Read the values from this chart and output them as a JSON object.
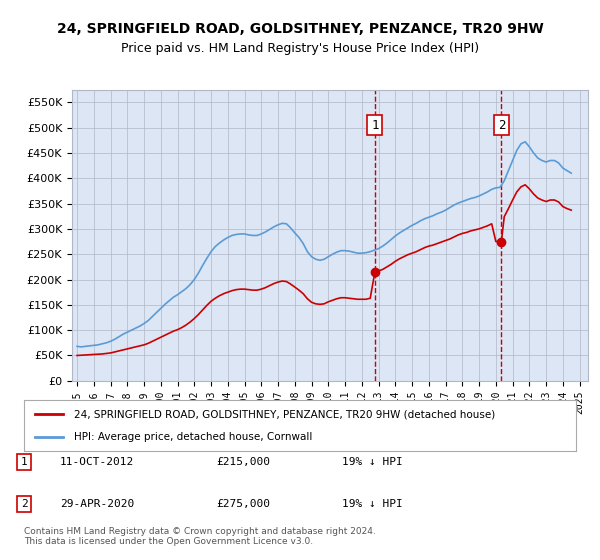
{
  "title": "24, SPRINGFIELD ROAD, GOLDSITHNEY, PENZANCE, TR20 9HW",
  "subtitle": "Price paid vs. HM Land Registry's House Price Index (HPI)",
  "background_color": "#dce6f5",
  "plot_bg_color": "#dce6f5",
  "ylabel_values": [
    "£0",
    "£50K",
    "£100K",
    "£150K",
    "£200K",
    "£250K",
    "£300K",
    "£350K",
    "£400K",
    "£450K",
    "£500K",
    "£550K"
  ],
  "ylim": [
    0,
    575000
  ],
  "xlim_start": 1995.0,
  "xlim_end": 2025.5,
  "legend_label_red": "24, SPRINGFIELD ROAD, GOLDSITHNEY, PENZANCE, TR20 9HW (detached house)",
  "legend_label_blue": "HPI: Average price, detached house, Cornwall",
  "point1_date": "11-OCT-2012",
  "point1_price": 215000,
  "point1_label": "1",
  "point1_x": 2012.78,
  "point2_date": "29-APR-2020",
  "point2_price": 275000,
  "point2_label": "2",
  "point2_x": 2020.33,
  "annotation1": "1    11-OCT-2012         £215,000        19% ↓ HPI",
  "annotation2": "2    29-APR-2020           £275,000        19% ↓ HPI",
  "footnote": "Contains HM Land Registry data © Crown copyright and database right 2024.\nThis data is licensed under the Open Government Licence v3.0.",
  "red_color": "#cc0000",
  "blue_color": "#5b9bd5",
  "dashed_red": "#cc0000",
  "hpi_data_x": [
    1995.0,
    1995.25,
    1995.5,
    1995.75,
    1996.0,
    1996.25,
    1996.5,
    1996.75,
    1997.0,
    1997.25,
    1997.5,
    1997.75,
    1998.0,
    1998.25,
    1998.5,
    1998.75,
    1999.0,
    1999.25,
    1999.5,
    1999.75,
    2000.0,
    2000.25,
    2000.5,
    2000.75,
    2001.0,
    2001.25,
    2001.5,
    2001.75,
    2002.0,
    2002.25,
    2002.5,
    2002.75,
    2003.0,
    2003.25,
    2003.5,
    2003.75,
    2004.0,
    2004.25,
    2004.5,
    2004.75,
    2005.0,
    2005.25,
    2005.5,
    2005.75,
    2006.0,
    2006.25,
    2006.5,
    2006.75,
    2007.0,
    2007.25,
    2007.5,
    2007.75,
    2008.0,
    2008.25,
    2008.5,
    2008.75,
    2009.0,
    2009.25,
    2009.5,
    2009.75,
    2010.0,
    2010.25,
    2010.5,
    2010.75,
    2011.0,
    2011.25,
    2011.5,
    2011.75,
    2012.0,
    2012.25,
    2012.5,
    2012.75,
    2013.0,
    2013.25,
    2013.5,
    2013.75,
    2014.0,
    2014.25,
    2014.5,
    2014.75,
    2015.0,
    2015.25,
    2015.5,
    2015.75,
    2016.0,
    2016.25,
    2016.5,
    2016.75,
    2017.0,
    2017.25,
    2017.5,
    2017.75,
    2018.0,
    2018.25,
    2018.5,
    2018.75,
    2019.0,
    2019.25,
    2019.5,
    2019.75,
    2020.0,
    2020.25,
    2020.5,
    2020.75,
    2021.0,
    2021.25,
    2021.5,
    2021.75,
    2022.0,
    2022.25,
    2022.5,
    2022.75,
    2023.0,
    2023.25,
    2023.5,
    2023.75,
    2024.0,
    2024.25,
    2024.5
  ],
  "hpi_data_y": [
    68000,
    67000,
    68000,
    69000,
    70000,
    71000,
    73000,
    75000,
    78000,
    82000,
    87000,
    92000,
    96000,
    100000,
    104000,
    108000,
    113000,
    119000,
    127000,
    135000,
    143000,
    151000,
    158000,
    165000,
    170000,
    176000,
    182000,
    190000,
    200000,
    213000,
    228000,
    242000,
    255000,
    265000,
    272000,
    278000,
    283000,
    287000,
    289000,
    290000,
    290000,
    288000,
    287000,
    287000,
    290000,
    294000,
    299000,
    304000,
    308000,
    311000,
    310000,
    302000,
    292000,
    283000,
    271000,
    255000,
    245000,
    240000,
    238000,
    240000,
    245000,
    250000,
    254000,
    257000,
    257000,
    256000,
    254000,
    252000,
    252000,
    253000,
    255000,
    258000,
    261000,
    266000,
    272000,
    279000,
    286000,
    292000,
    297000,
    302000,
    307000,
    311000,
    316000,
    320000,
    323000,
    326000,
    330000,
    333000,
    337000,
    342000,
    347000,
    351000,
    354000,
    357000,
    360000,
    362000,
    365000,
    369000,
    373000,
    378000,
    381000,
    382000,
    395000,
    415000,
    435000,
    455000,
    468000,
    472000,
    462000,
    450000,
    440000,
    435000,
    432000,
    435000,
    435000,
    430000,
    420000,
    415000,
    410000
  ],
  "red_data_x": [
    1995.0,
    1995.25,
    1995.5,
    1995.75,
    1996.0,
    1996.25,
    1996.5,
    1996.75,
    1997.0,
    1997.25,
    1997.5,
    1997.75,
    1998.0,
    1998.25,
    1998.5,
    1998.75,
    1999.0,
    1999.25,
    1999.5,
    1999.75,
    2000.0,
    2000.25,
    2000.5,
    2000.75,
    2001.0,
    2001.25,
    2001.5,
    2001.75,
    2002.0,
    2002.25,
    2002.5,
    2002.75,
    2003.0,
    2003.25,
    2003.5,
    2003.75,
    2004.0,
    2004.25,
    2004.5,
    2004.75,
    2005.0,
    2005.25,
    2005.5,
    2005.75,
    2006.0,
    2006.25,
    2006.5,
    2006.75,
    2007.0,
    2007.25,
    2007.5,
    2007.75,
    2008.0,
    2008.25,
    2008.5,
    2008.75,
    2009.0,
    2009.25,
    2009.5,
    2009.75,
    2010.0,
    2010.25,
    2010.5,
    2010.75,
    2011.0,
    2011.25,
    2011.5,
    2011.75,
    2012.0,
    2012.25,
    2012.5,
    2012.78,
    2013.0,
    2013.25,
    2013.5,
    2013.75,
    2014.0,
    2014.25,
    2014.5,
    2014.75,
    2015.0,
    2015.25,
    2015.5,
    2015.75,
    2016.0,
    2016.25,
    2016.5,
    2016.75,
    2017.0,
    2017.25,
    2017.5,
    2017.75,
    2018.0,
    2018.25,
    2018.5,
    2018.75,
    2019.0,
    2019.25,
    2019.5,
    2019.75,
    2020.0,
    2020.33,
    2020.5,
    2020.75,
    2021.0,
    2021.25,
    2021.5,
    2021.75,
    2022.0,
    2022.25,
    2022.5,
    2022.75,
    2023.0,
    2023.25,
    2023.5,
    2023.75,
    2024.0,
    2024.25,
    2024.5
  ],
  "red_data_y": [
    50000,
    50500,
    51000,
    51500,
    52000,
    52500,
    53000,
    54000,
    55000,
    57000,
    59000,
    61000,
    63000,
    65000,
    67000,
    69000,
    71000,
    74000,
    78000,
    82000,
    86000,
    90000,
    94000,
    98000,
    101000,
    105000,
    110000,
    116000,
    123000,
    131000,
    140000,
    149000,
    157000,
    163000,
    168000,
    172000,
    175000,
    178000,
    180000,
    181000,
    181000,
    180000,
    179000,
    179000,
    181000,
    184000,
    188000,
    192000,
    195000,
    197000,
    196000,
    191000,
    185000,
    179000,
    172000,
    162000,
    155000,
    152000,
    151000,
    152000,
    156000,
    159000,
    162000,
    164000,
    164000,
    163000,
    162000,
    161000,
    161000,
    161000,
    163000,
    215000,
    217000,
    220000,
    225000,
    230000,
    236000,
    241000,
    245000,
    249000,
    252000,
    255000,
    259000,
    263000,
    266000,
    268000,
    271000,
    274000,
    277000,
    280000,
    284000,
    288000,
    291000,
    293000,
    296000,
    298000,
    300000,
    303000,
    306000,
    310000,
    275000,
    275000,
    324000,
    340000,
    357000,
    373000,
    383000,
    387000,
    379000,
    369000,
    361000,
    357000,
    354000,
    357000,
    357000,
    353000,
    344000,
    340000,
    337000
  ]
}
